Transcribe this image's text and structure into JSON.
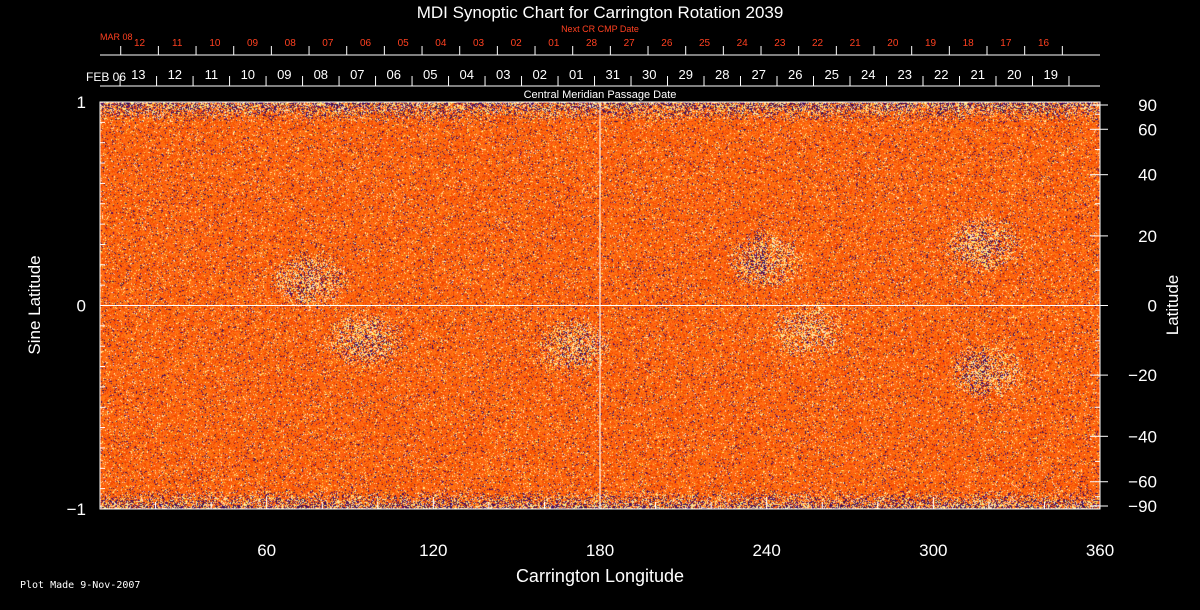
{
  "chart_data": {
    "type": "heatmap",
    "title": "MDI Synoptic Chart for Carrington Rotation 2039",
    "xlabel": "Carrington Longitude",
    "ylabel_left": "Sine Latitude",
    "ylabel_right": "Latitude",
    "top_axis_label": "Central Meridian Passage Date",
    "next_cr_label": "Next CR CMP Date",
    "xlim": [
      0,
      360
    ],
    "ylim": [
      -1,
      1
    ],
    "x_ticks": [
      "60",
      "120",
      "180",
      "240",
      "300",
      "360"
    ],
    "left_ticks": [
      {
        "value": 1,
        "label": "1"
      },
      {
        "value": 0,
        "label": "0"
      },
      {
        "value": -1,
        "label": "−1"
      }
    ],
    "right_ticks": [
      {
        "deg": 90,
        "label": "90"
      },
      {
        "deg": 60,
        "label": "60"
      },
      {
        "deg": 40,
        "label": "40"
      },
      {
        "deg": 20,
        "label": "20"
      },
      {
        "deg": 0,
        "label": "0"
      },
      {
        "deg": -20,
        "label": "−20"
      },
      {
        "deg": -40,
        "label": "−40"
      },
      {
        "deg": -60,
        "label": "−60"
      },
      {
        "deg": -90,
        "label": "−90"
      }
    ],
    "cmp_dates": {
      "start_label": "FEB 06",
      "dates": [
        "13",
        "12",
        "11",
        "10",
        "09",
        "08",
        "07",
        "06",
        "05",
        "04",
        "03",
        "02",
        "01",
        "31",
        "30",
        "29",
        "28",
        "27",
        "26",
        "25",
        "24",
        "23",
        "22",
        "21",
        "20",
        "19"
      ]
    },
    "next_cr_dates": {
      "start_label": "MAR 08",
      "dates": [
        "12",
        "11",
        "10",
        "09",
        "08",
        "07",
        "06",
        "05",
        "04",
        "03",
        "02",
        "01",
        "28",
        "27",
        "26",
        "25",
        "24",
        "23",
        "22",
        "21",
        "20",
        "19",
        "18",
        "17",
        "16"
      ]
    },
    "active_regions": [
      {
        "lon": 75,
        "sinlat": 0.12,
        "polarity": "mixed"
      },
      {
        "lon": 95,
        "sinlat": -0.17,
        "polarity": "mixed"
      },
      {
        "lon": 170,
        "sinlat": -0.2,
        "polarity": "mixed"
      },
      {
        "lon": 240,
        "sinlat": 0.22,
        "polarity": "bipolar"
      },
      {
        "lon": 255,
        "sinlat": -0.12,
        "polarity": "positive"
      },
      {
        "lon": 318,
        "sinlat": 0.3,
        "polarity": "mixed"
      },
      {
        "lon": 320,
        "sinlat": -0.32,
        "polarity": "bipolar"
      }
    ],
    "colors": {
      "background": "#000000",
      "map_base": "#ff5a10",
      "negative": "#200040",
      "positive": "#ffffc0",
      "cr_dates": "#ff4020",
      "axes": "#ffffff"
    }
  },
  "footer": {
    "plot_made": "Plot Made  9-Nov-2007"
  }
}
